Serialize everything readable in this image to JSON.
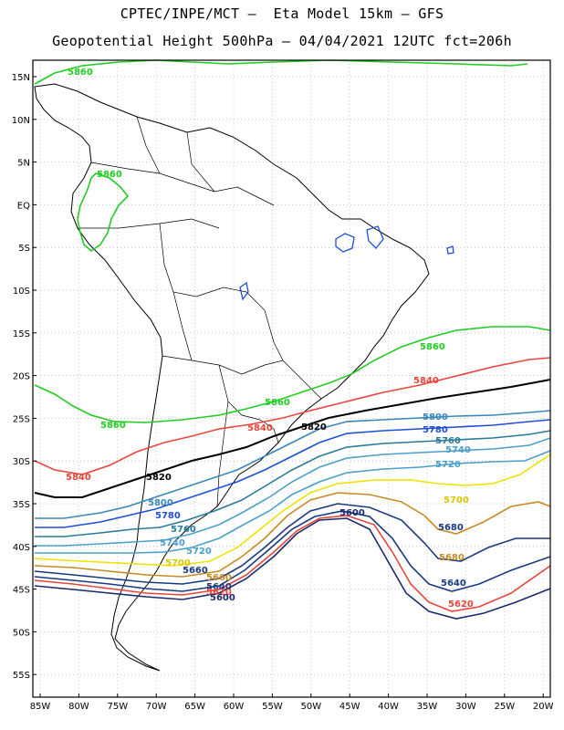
{
  "title_line1": "CPTEC/INPE/MCT –  Eta Model 15km – GFS",
  "title_line2": "Geopotential Height 500hPa – 04/04/2021 12UTC fct=206h",
  "lat_ticks": [
    "15N",
    "10N",
    "5N",
    "EQ",
    "5S",
    "10S",
    "15S",
    "20S",
    "25S",
    "30S",
    "35S",
    "40S",
    "45S",
    "50S",
    "55S"
  ],
  "lon_ticks": [
    "85W",
    "80W",
    "75W",
    "70W",
    "65W",
    "60W",
    "55W",
    "50W",
    "45W",
    "40W",
    "35W",
    "30W",
    "25W",
    "20W"
  ],
  "contours": [
    {
      "value": 5860,
      "color": "#22cc22"
    },
    {
      "value": 5840,
      "color": "#e8463a"
    },
    {
      "value": 5820,
      "color": "#000000"
    },
    {
      "value": 5800,
      "color": "#3a86b8"
    },
    {
      "value": 5780,
      "color": "#1f4fd8"
    },
    {
      "value": 5760,
      "color": "#2a7a9a"
    },
    {
      "value": 5740,
      "color": "#4aa0c8"
    },
    {
      "value": 5720,
      "color": "#4aa0c8"
    },
    {
      "value": 5700,
      "color": "#f0e000"
    },
    {
      "value": 5680,
      "color": "#c88a22"
    },
    {
      "value": 5660,
      "color": "#1a3a80"
    },
    {
      "value": 5640,
      "color": "#1a3a80"
    },
    {
      "value": 5620,
      "color": "#e8463a"
    },
    {
      "value": 5600,
      "color": "#1a2a6a"
    }
  ],
  "labels": {
    "l5860a": "5860",
    "l5860b": "5860",
    "l5860c": "5860",
    "l5860d": "5860",
    "l5860e": "5860",
    "l5840a": "5840",
    "l5840b": "5840",
    "l5840c": "5840",
    "l5820a": "5820",
    "l5820b": "5820",
    "l5800a": "5800",
    "l5800b": "5800",
    "l5780a": "5780",
    "l5780b": "5780",
    "l5760a": "5760",
    "l5760b": "5760",
    "l5740a": "5740",
    "l5740b": "5740",
    "l5720a": "5720",
    "l5720b": "5720",
    "l5700a": "5700",
    "l5700b": "5700",
    "l5680a": "5680",
    "l5680b": "5680",
    "l5660a": "5660",
    "l5660b": "5660",
    "l5640a": "5640",
    "l5640b": "5640",
    "l5620a": "5620",
    "l5620b": "5620",
    "l5600a": "5600",
    "l5600b": "5600",
    "l5600c": "5600"
  }
}
